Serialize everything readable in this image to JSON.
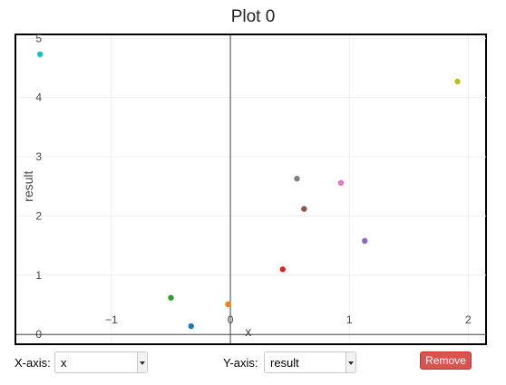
{
  "plot": {
    "title": "Plot 0"
  },
  "controls": {
    "xaxis_label": "X-axis:",
    "xaxis_value": "x",
    "yaxis_label": "Y-axis:",
    "yaxis_value": "result",
    "remove_label": "Remove"
  },
  "chart_data": {
    "type": "scatter",
    "title": "Plot 0",
    "xlabel": "x",
    "ylabel": "result",
    "xlim": [
      -1.8,
      2.15
    ],
    "ylim": [
      -0.15,
      5.05
    ],
    "xticks": [
      -1,
      0,
      1,
      2
    ],
    "xtick_labels": [
      "−1",
      "0",
      "1",
      "2"
    ],
    "yticks": [
      0,
      1,
      2,
      3,
      4,
      5
    ],
    "ytick_labels": [
      "0",
      "1",
      "2",
      "3",
      "4",
      "5"
    ],
    "grid": true,
    "points": [
      {
        "x": -1.6,
        "y": 4.73,
        "color": "#17becf"
      },
      {
        "x": 1.91,
        "y": 4.27,
        "color": "#bcbd22"
      },
      {
        "x": 0.56,
        "y": 2.63,
        "color": "#7f7f7f"
      },
      {
        "x": 0.93,
        "y": 2.56,
        "color": "#e377c2"
      },
      {
        "x": 0.62,
        "y": 2.12,
        "color": "#8c564b"
      },
      {
        "x": 1.13,
        "y": 1.58,
        "color": "#9467bd"
      },
      {
        "x": 0.44,
        "y": 1.1,
        "color": "#d62728"
      },
      {
        "x": -0.5,
        "y": 0.62,
        "color": "#2ca02c"
      },
      {
        "x": -0.02,
        "y": 0.51,
        "color": "#ff7f0e"
      },
      {
        "x": -0.33,
        "y": 0.14,
        "color": "#1f77b4"
      }
    ]
  }
}
